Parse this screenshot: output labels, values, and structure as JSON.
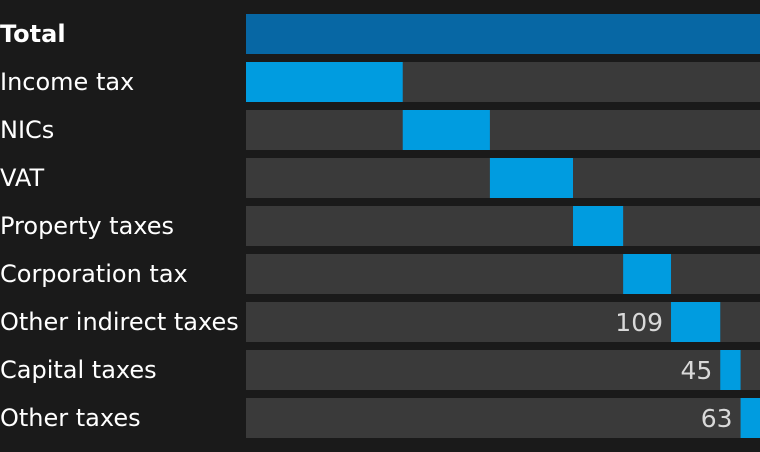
{
  "chart_data": {
    "type": "bar",
    "subtype": "waterfall",
    "categories": [
      "Total",
      "Income tax",
      "NICs",
      "VAT",
      "Property taxes",
      "Corporation tax",
      "Other indirect taxes",
      "Capital taxes",
      "Other taxes"
    ],
    "values": [
      1138,
      347,
      193,
      184,
      111,
      106,
      109,
      45,
      63
    ],
    "value_labels": [
      "",
      "",
      "",
      "",
      "",
      "",
      "109",
      "45",
      "63"
    ],
    "total_index": 0,
    "xlim": [
      0,
      1138
    ],
    "grid": false,
    "legend": "none",
    "colors": {
      "background": "#1a1a1a",
      "track": "#3a3a3a",
      "total_bar": "#0767a4",
      "component_bar": "#009ce0",
      "label_text": "#ffffff",
      "value_text": "#d9d9d9"
    }
  }
}
